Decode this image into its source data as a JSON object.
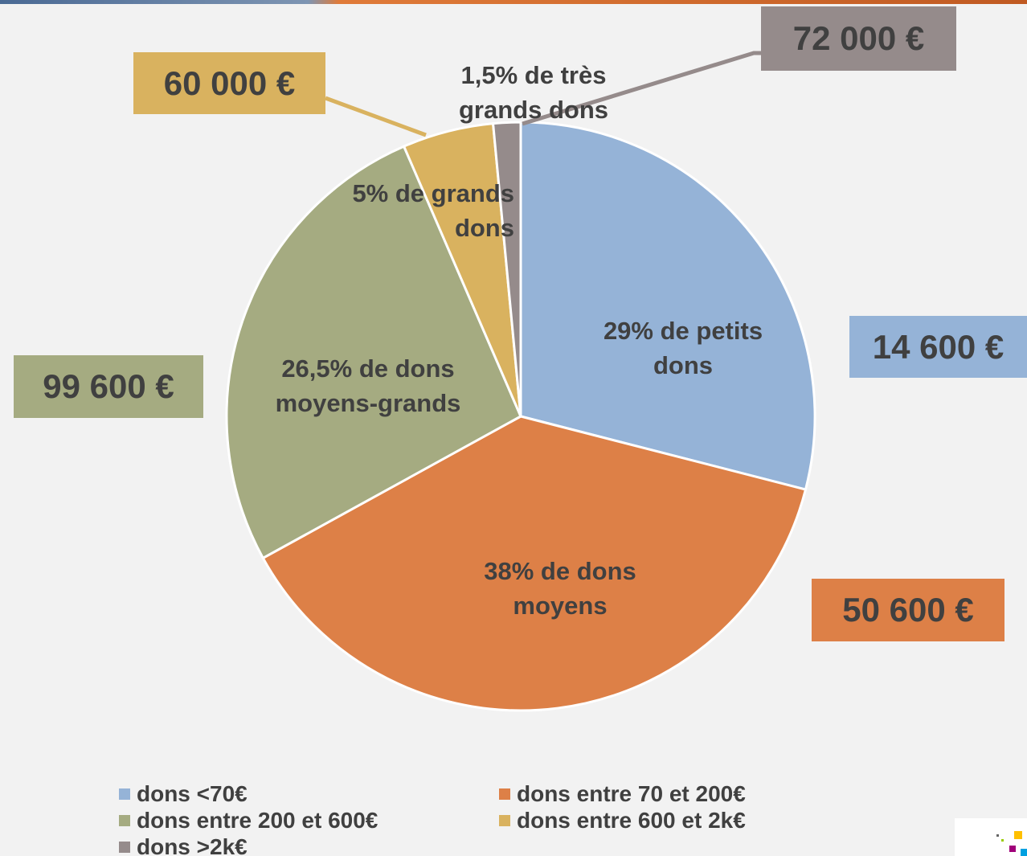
{
  "chart_data": {
    "type": "pie",
    "categories": [
      "dons <70€",
      "dons entre 70 et 200€",
      "dons entre 200 et 600€",
      "dons entre 600 et 2k€",
      "dons >2k€"
    ],
    "values": [
      29,
      38,
      26.5,
      5,
      1.5
    ],
    "value_labels": [
      "29% de petits dons",
      "38% de dons moyens",
      "26,5% de dons moyens-grands",
      "5% de grands dons",
      "1,5% de très grands dons"
    ],
    "annotations": [
      "14 600 €",
      "50 600 €",
      "99 600 €",
      "60 000 €",
      "72 000 €"
    ],
    "colors": [
      "#95b3d7",
      "#dd8047",
      "#a5ab81",
      "#d9b25f",
      "#958b8b"
    ],
    "legend": "bottom"
  }
}
